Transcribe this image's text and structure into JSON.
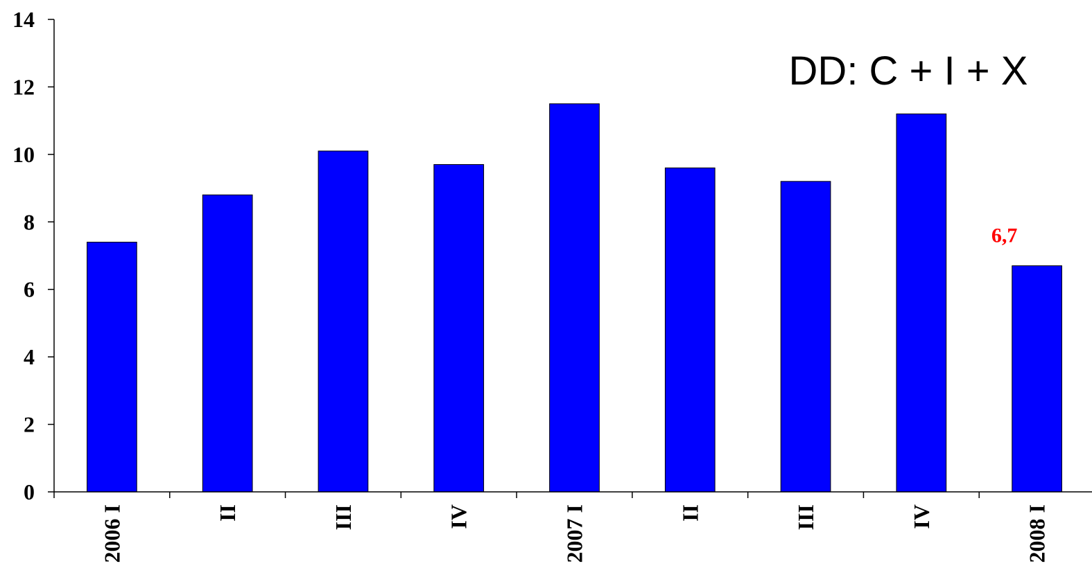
{
  "chart_data": {
    "type": "bar",
    "title": "",
    "xlabel": "",
    "ylabel": "",
    "categories": [
      "2006 I",
      "II",
      "III",
      "IV",
      "2007 I",
      "II",
      "III",
      "IV",
      "2008 I"
    ],
    "values": [
      7.4,
      8.8,
      10.1,
      9.7,
      11.5,
      9.6,
      9.2,
      11.2,
      6.7
    ],
    "ylim": [
      0,
      14
    ],
    "yticks": [
      "0",
      "2",
      "4",
      "6",
      "8",
      "10",
      "12",
      "14"
    ],
    "grid": false,
    "legend": "none",
    "annotation": "DD: C + I + X",
    "data_labels": [
      {
        "category_index": 8,
        "text": "6,7"
      }
    ],
    "colors": {
      "bar": "#0000ff",
      "data_label": "#ff0000",
      "axis": "#000000"
    }
  }
}
